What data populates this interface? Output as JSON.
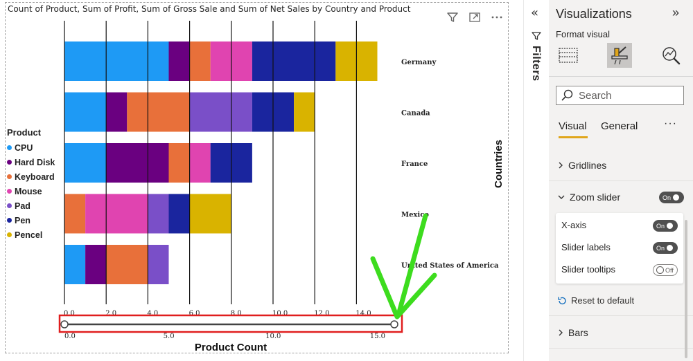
{
  "chart": {
    "title": "Count of Product, Sum of Profit, Sum of Gross Sale and Sum of Net Sales by Country and Product",
    "y_axis_title": "Countries",
    "x_axis_title": "Product Count",
    "legend_title": "Product"
  },
  "chart_data": {
    "type": "bar",
    "orientation": "horizontal",
    "stacked": true,
    "categories": [
      "Germany",
      "Canada",
      "France",
      "Mexico",
      "United States of America"
    ],
    "series": [
      {
        "name": "CPU",
        "color": "#1e9af5",
        "values": [
          5,
          2,
          2,
          0,
          1
        ]
      },
      {
        "name": "Hard Disk",
        "color": "#6a0080",
        "values": [
          1,
          1,
          3,
          0,
          1
        ]
      },
      {
        "name": "Keyboard",
        "color": "#e8703a",
        "values": [
          1,
          3,
          1,
          1,
          2
        ]
      },
      {
        "name": "Mouse",
        "color": "#e044b0",
        "values": [
          2,
          0,
          1,
          3,
          0
        ]
      },
      {
        "name": "Pad",
        "color": "#7a4fc8",
        "values": [
          0,
          3,
          0,
          1,
          1
        ]
      },
      {
        "name": "Pen",
        "color": "#1a259e",
        "values": [
          4,
          2,
          2,
          1,
          0
        ]
      },
      {
        "name": "Pencel",
        "color": "#d9b300",
        "values": [
          2,
          1,
          0,
          2,
          0
        ]
      }
    ],
    "xlim": [
      0,
      15
    ],
    "x_ticks": [
      "0.0",
      "2.0",
      "4.0",
      "6.0",
      "8.0",
      "10.0",
      "12.0",
      "14.0"
    ],
    "x_tick_values": [
      0,
      2,
      4,
      6,
      8,
      10,
      12,
      14
    ],
    "slider_ticks": [
      "0.0",
      "5.0",
      "10.0",
      "15.0"
    ],
    "slider_tick_values": [
      0,
      5,
      10,
      15
    ],
    "slider_range": [
      0,
      15.8
    ],
    "grid": true,
    "legend_position": "left",
    "xlabel": "Product Count",
    "ylabel": "Countries"
  },
  "filters": {
    "label": "Filters"
  },
  "viz": {
    "title": "Visualizations",
    "subtitle": "Format visual",
    "search_placeholder": "Search",
    "tab_visual": "Visual",
    "tab_general": "General",
    "sections": {
      "gridlines": "Gridlines",
      "zoom_slider": "Zoom slider",
      "bars": "Bars"
    },
    "zoom_toggle": "On",
    "card": {
      "x_axis": "X-axis",
      "x_axis_toggle": "On",
      "slider_labels": "Slider labels",
      "slider_labels_toggle": "On",
      "slider_tooltips": "Slider tooltips",
      "slider_tooltips_toggle": "Off"
    },
    "reset": "Reset to default"
  },
  "annotation": {
    "highlight_color": "#e01e1e",
    "arrow_color": "#3ddc1e"
  }
}
